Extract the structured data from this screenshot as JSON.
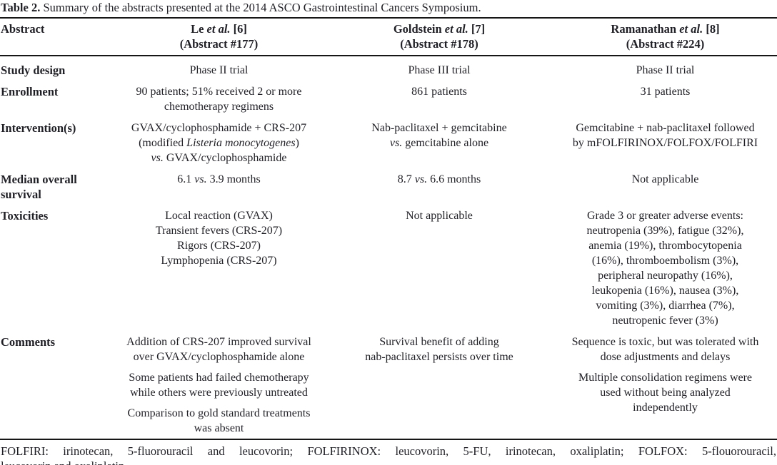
{
  "colors": {
    "text": "#1f1f26",
    "rule": "#161616",
    "background": "#ffffff"
  },
  "title": {
    "label": "Table 2.",
    "text": " Summary of the abstracts presented at the 2014 ASCO Gastrointestinal Cancers Symposium."
  },
  "table": {
    "header": {
      "label": "Abstract",
      "columns": [
        [
          [
            {
              "t": "Le "
            },
            {
              "t": "et al.",
              "i": true
            },
            {
              "t": " [6]"
            },
            {
              "br": true
            },
            {
              "t": "(Abstract #177)"
            }
          ]
        ],
        [
          [
            {
              "t": "Goldstein "
            },
            {
              "t": "et al.",
              "i": true
            },
            {
              "t": " [7]"
            },
            {
              "br": true
            },
            {
              "t": "(Abstract #178)"
            }
          ]
        ],
        [
          [
            {
              "t": "Ramanathan "
            },
            {
              "t": "et al.",
              "i": true
            },
            {
              "t": " [8]"
            },
            {
              "br": true
            },
            {
              "t": "(Abstract #224)"
            }
          ]
        ]
      ]
    },
    "rows": [
      {
        "label": "Study design",
        "cells": [
          [
            [
              {
                "t": "Phase II trial"
              }
            ]
          ],
          [
            [
              {
                "t": "Phase III trial"
              }
            ]
          ],
          [
            [
              {
                "t": "Phase II trial"
              }
            ]
          ]
        ]
      },
      {
        "label": "Enrollment",
        "cells": [
          [
            [
              {
                "t": "90 patients; 51% received 2 or more"
              },
              {
                "br": true
              },
              {
                "t": "chemotherapy regimens"
              }
            ]
          ],
          [
            [
              {
                "t": "861 patients"
              }
            ]
          ],
          [
            [
              {
                "t": "31 patients"
              }
            ]
          ]
        ]
      },
      {
        "label": "Intervention(s)",
        "cells": [
          [
            [
              {
                "t": "GVAX/cyclophosphamide + CRS-207"
              },
              {
                "br": true
              },
              {
                "t": "(modified "
              },
              {
                "t": "Listeria monocytogenes",
                "i": true
              },
              {
                "t": ")"
              },
              {
                "br": true
              },
              {
                "t": "vs.",
                "i": true
              },
              {
                "t": " GVAX/cyclophosphamide"
              }
            ]
          ],
          [
            [
              {
                "t": "Nab-paclitaxel + gemcitabine"
              },
              {
                "br": true
              },
              {
                "t": "vs.",
                "i": true
              },
              {
                "t": " gemcitabine alone"
              }
            ]
          ],
          [
            [
              {
                "t": "Gemcitabine + nab-paclitaxel followed"
              },
              {
                "br": true
              },
              {
                "t": "by mFOLFIRINOX/FOLFOX/FOLFIRI"
              }
            ]
          ]
        ]
      },
      {
        "label": "Median overall survival",
        "cells": [
          [
            [
              {
                "t": "6.1 "
              },
              {
                "t": "vs.",
                "i": true
              },
              {
                "t": " 3.9 months"
              }
            ]
          ],
          [
            [
              {
                "t": "8.7 "
              },
              {
                "t": "vs.",
                "i": true
              },
              {
                "t": " 6.6 months"
              }
            ]
          ],
          [
            [
              {
                "t": "Not applicable"
              }
            ]
          ]
        ]
      },
      {
        "label": "Toxicities",
        "cells": [
          [
            [
              {
                "t": "Local reaction (GVAX)"
              },
              {
                "br": true
              },
              {
                "t": "Transient fevers (CRS-207)"
              },
              {
                "br": true
              },
              {
                "t": "Rigors (CRS-207)"
              },
              {
                "br": true
              },
              {
                "t": "Lymphopenia (CRS-207)"
              }
            ]
          ],
          [
            [
              {
                "t": "Not applicable"
              }
            ]
          ],
          [
            [
              {
                "t": "Grade 3 or greater adverse events:"
              },
              {
                "br": true
              },
              {
                "t": "neutropenia (39%), fatigue (32%),"
              },
              {
                "br": true
              },
              {
                "t": "anemia (19%), thrombocytopenia"
              },
              {
                "br": true
              },
              {
                "t": "(16%), thromboembolism (3%),"
              },
              {
                "br": true
              },
              {
                "t": "peripheral neuropathy (16%),"
              },
              {
                "br": true
              },
              {
                "t": "leukopenia (16%), nausea (3%),"
              },
              {
                "br": true
              },
              {
                "t": "vomiting (3%), diarrhea (7%),"
              },
              {
                "br": true
              },
              {
                "t": "neutropenic fever (3%)"
              }
            ]
          ]
        ]
      },
      {
        "label": "Comments",
        "cells": [
          [
            [
              {
                "t": "Addition of CRS-207 improved survival"
              },
              {
                "br": true
              },
              {
                "t": "over GVAX/cyclophosphamide alone"
              }
            ],
            [
              {
                "t": "Some patients had failed chemotherapy"
              },
              {
                "br": true
              },
              {
                "t": "while others were previously untreated"
              }
            ],
            [
              {
                "t": "Comparison to gold standard treatments"
              },
              {
                "br": true
              },
              {
                "t": "was absent"
              }
            ]
          ],
          [
            [
              {
                "t": "Survival benefit of adding"
              },
              {
                "br": true
              },
              {
                "t": "nab-paclitaxel persists over time"
              }
            ]
          ],
          [
            [
              {
                "t": "Sequence is toxic, but was tolerated with"
              },
              {
                "br": true
              },
              {
                "t": "dose adjustments and delays"
              }
            ],
            [
              {
                "t": "Multiple consolidation regimens were"
              },
              {
                "br": true
              },
              {
                "t": "used without being analyzed"
              },
              {
                "br": true
              },
              {
                "t": "independently"
              }
            ]
          ]
        ]
      }
    ]
  },
  "footnote": {
    "line1": "FOLFIRI: irinotecan, 5-fluorouracil and leucovorin; FOLFIRINOX: leucovorin, 5-FU, irinotecan, oxaliplatin; FOLFOX: 5-flouorouracil,",
    "line2": "leucovorin and oxaliplatin"
  }
}
